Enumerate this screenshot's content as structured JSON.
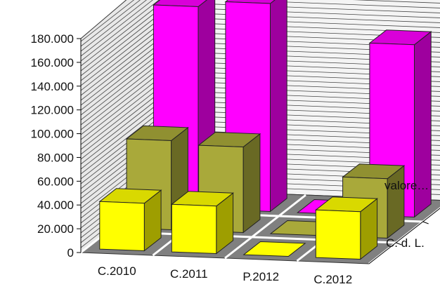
{
  "chart_data": {
    "type": "bar",
    "variant": "3d-depth-bar",
    "categories": [
      "C.2010",
      "C.2011",
      "P.2012",
      "C.2012"
    ],
    "series": [
      {
        "name": "C. d. L.",
        "values": [
          40000,
          40000,
          0,
          40000
        ]
      },
      {
        "name": "",
        "values": [
          75000,
          72000,
          0,
          50000
        ]
      },
      {
        "name": "valore…",
        "values": [
          170000,
          175000,
          0,
          145000
        ]
      }
    ],
    "depth_labels": [
      "C. d. L.",
      "valore…"
    ],
    "y_ticks": [
      "0",
      "20.000",
      "40.000",
      "60.000",
      "80.000",
      "100.000",
      "120.000",
      "140.000",
      "160.000",
      "180.000"
    ],
    "ylim": [
      0,
      180000
    ],
    "title": "",
    "xlabel": "",
    "ylabel": "",
    "grid": true,
    "colors": {
      "front_series": "#ffff00",
      "middle_series": "#a9a93a",
      "back_series": "#ff00ff",
      "floor": "#808080",
      "wall_lines": "#444444"
    }
  }
}
